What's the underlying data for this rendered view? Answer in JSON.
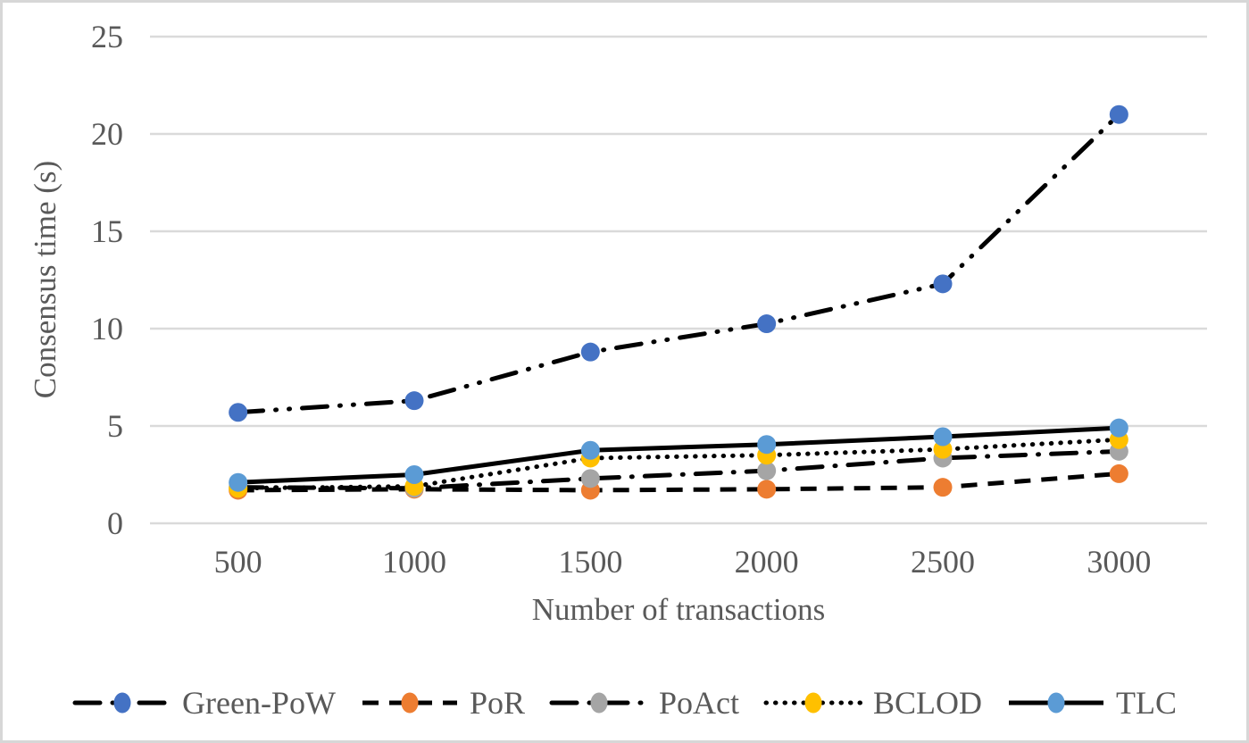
{
  "window": {
    "background": "#ffffff",
    "frame_border_color": "#d7d7d7"
  },
  "chart_data": {
    "type": "line",
    "title": "",
    "xlabel": "Number of transactions",
    "ylabel": "Consensus time (s)",
    "x_categories": [
      "500",
      "1000",
      "1500",
      "2000",
      "2500",
      "3000"
    ],
    "y_ticks": [
      0,
      5,
      10,
      15,
      20,
      25
    ],
    "ylim": [
      0,
      25
    ],
    "grid": "horizontal gridlines on",
    "gridline_color": "#dadada",
    "axis_text_color": "#595959",
    "line_color": "#000000",
    "legend_position": "bottom",
    "series": [
      {
        "name": "Green-PoW",
        "marker_color": "#4472C4",
        "line_style": "dash-dot-dot",
        "values": [
          5.7,
          6.3,
          8.8,
          10.25,
          12.3,
          21.0
        ]
      },
      {
        "name": "PoR",
        "marker_color": "#ED7D31",
        "line_style": "dashed",
        "values": [
          1.7,
          1.75,
          1.7,
          1.75,
          1.85,
          2.55
        ]
      },
      {
        "name": "PoAct",
        "marker_color": "#A5A5A5",
        "line_style": "dash-dot",
        "values": [
          1.85,
          1.8,
          2.3,
          2.7,
          3.35,
          3.7
        ]
      },
      {
        "name": "BCLOD",
        "marker_color": "#FFC000",
        "line_style": "dotted",
        "values": [
          1.8,
          1.9,
          3.35,
          3.5,
          3.8,
          4.3
        ]
      },
      {
        "name": "TLC",
        "marker_color": "#5B9BD5",
        "line_style": "solid",
        "values": [
          2.1,
          2.5,
          3.75,
          4.05,
          4.45,
          4.9
        ]
      }
    ]
  }
}
